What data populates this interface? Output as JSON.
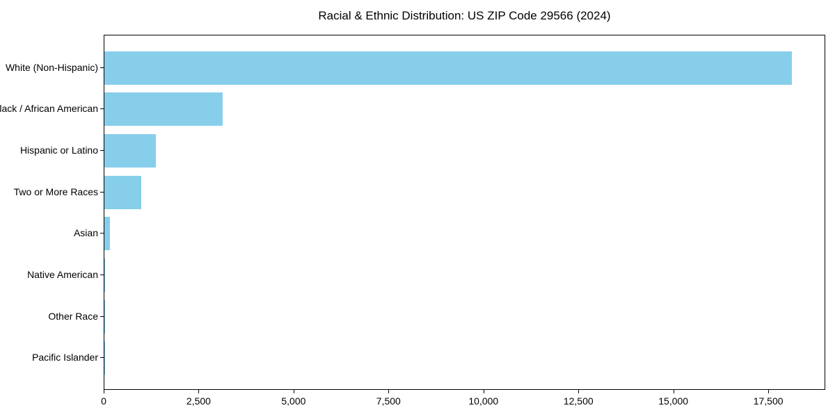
{
  "chart_data": {
    "type": "bar",
    "orientation": "horizontal",
    "title": "Racial & Ethnic Distribution: US ZIP Code 29566 (2024)",
    "categories": [
      "White (Non-Hispanic)",
      "Black / African American",
      "Hispanic or Latino",
      "Two or More Races",
      "Asian",
      "Native American",
      "Other Race",
      "Pacific Islander"
    ],
    "values": [
      18100,
      3120,
      1350,
      980,
      150,
      25,
      12,
      4
    ],
    "xlabel": "",
    "ylabel": "",
    "xlim": [
      0,
      19000
    ],
    "xticks": {
      "values": [
        0,
        2500,
        5000,
        7500,
        10000,
        12500,
        15000,
        17500
      ],
      "labels": [
        "0",
        "2,500",
        "5,000",
        "7,500",
        "10,000",
        "12,500",
        "15,000",
        "17,500"
      ]
    },
    "bar_color": "#87CEEB",
    "text_color": "#000000",
    "grid": false,
    "legend": null
  }
}
